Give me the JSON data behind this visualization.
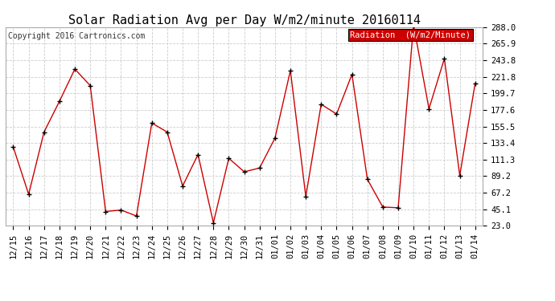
{
  "title": "Solar Radiation Avg per Day W/m2/minute 20160114",
  "copyright": "Copyright 2016 Cartronics.com",
  "legend_label": "Radiation  (W/m2/Minute)",
  "dates": [
    "12/15",
    "12/16",
    "12/17",
    "12/18",
    "12/19",
    "12/20",
    "12/21",
    "12/22",
    "12/23",
    "12/24",
    "12/25",
    "12/26",
    "12/27",
    "12/28",
    "12/29",
    "12/30",
    "12/31",
    "01/01",
    "01/02",
    "01/03",
    "01/04",
    "01/05",
    "01/06",
    "01/07",
    "01/08",
    "01/09",
    "01/10",
    "01/11",
    "01/12",
    "01/13",
    "01/14"
  ],
  "values": [
    128.0,
    65.0,
    148.0,
    189.0,
    232.0,
    210.0,
    42.0,
    44.0,
    36.0,
    160.0,
    148.0,
    76.0,
    118.0,
    27.0,
    113.0,
    95.0,
    100.0,
    140.0,
    230.0,
    62.0,
    185.0,
    172.0,
    225.0,
    85.0,
    48.0,
    47.0,
    291.0,
    179.0,
    246.0,
    90.0,
    213.0
  ],
  "line_color": "#cc0000",
  "marker_color": "#000000",
  "bg_color": "#ffffff",
  "grid_color": "#cccccc",
  "ylim_min": 23.0,
  "ylim_max": 288.0,
  "ytick_values": [
    23.0,
    45.1,
    67.2,
    89.2,
    111.3,
    133.4,
    155.5,
    177.6,
    199.7,
    221.8,
    243.8,
    265.9,
    288.0
  ],
  "ytick_labels": [
    "23.0",
    "45.1",
    "67.2",
    "89.2",
    "111.3",
    "133.4",
    "155.5",
    "177.6",
    "199.7",
    "221.8",
    "243.8",
    "265.9",
    "288.0"
  ],
  "legend_bg": "#cc0000",
  "legend_text_color": "#ffffff",
  "title_fontsize": 11,
  "tick_fontsize": 7.5,
  "copyright_fontsize": 7,
  "legend_fontsize": 7.5
}
